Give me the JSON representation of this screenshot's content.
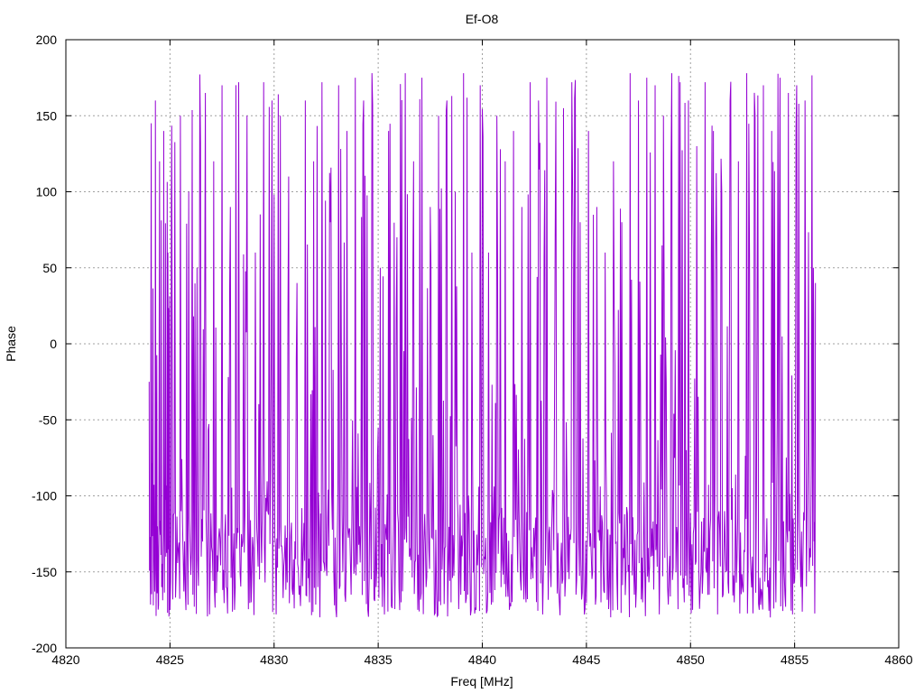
{
  "chart_data": {
    "type": "line",
    "title": "Ef-O8",
    "xlabel": "Freq [MHz]",
    "ylabel": "Phase",
    "xlim": [
      4820,
      4860
    ],
    "ylim": [
      -200,
      200
    ],
    "xticks": [
      4820,
      4825,
      4830,
      4835,
      4840,
      4845,
      4850,
      4855,
      4860
    ],
    "yticks": [
      -200,
      -150,
      -100,
      -50,
      0,
      50,
      100,
      150,
      200
    ],
    "grid": true,
    "line_color": "#9400d3",
    "series": [
      {
        "x_start": 4824.0,
        "x_end": 4856.0,
        "points": [
          [
            4824.0,
            -25
          ],
          [
            4824.1,
            145
          ],
          [
            4824.2,
            -172
          ],
          [
            4824.3,
            160
          ],
          [
            4824.4,
            -120
          ],
          [
            4824.5,
            120
          ],
          [
            4824.6,
            -160
          ],
          [
            4824.7,
            140
          ],
          [
            4824.8,
            -140
          ],
          [
            4824.9,
            60
          ],
          [
            4825.0,
            -175
          ],
          [
            4825.1,
            30
          ],
          [
            4825.3,
            -150
          ],
          [
            4825.5,
            150
          ],
          [
            4825.7,
            -130
          ],
          [
            4825.9,
            100
          ],
          [
            4826.1,
            -165
          ],
          [
            4826.3,
            50
          ],
          [
            4826.5,
            -140
          ],
          [
            4826.7,
            165
          ],
          [
            4826.9,
            -178
          ],
          [
            4827.1,
            120
          ],
          [
            4827.3,
            -150
          ],
          [
            4827.5,
            170
          ],
          [
            4827.7,
            -160
          ],
          [
            4827.9,
            90
          ],
          [
            4828.1,
            -175
          ],
          [
            4828.3,
            172
          ],
          [
            4828.5,
            -130
          ],
          [
            4828.7,
            150
          ],
          [
            4828.9,
            -170
          ],
          [
            4829.1,
            60
          ],
          [
            4829.3,
            -155
          ],
          [
            4829.5,
            172
          ],
          [
            4829.7,
            -110
          ],
          [
            4829.9,
            160
          ],
          [
            4830.1,
            -178
          ],
          [
            4830.3,
            150
          ],
          [
            4830.5,
            -140
          ],
          [
            4830.7,
            110
          ],
          [
            4830.9,
            -165
          ],
          [
            4831.1,
            40
          ],
          [
            4831.3,
            -150
          ],
          [
            4831.5,
            160
          ],
          [
            4831.7,
            -170
          ],
          [
            4831.9,
            120
          ],
          [
            4832.1,
            -160
          ],
          [
            4832.3,
            172
          ],
          [
            4832.5,
            -145
          ],
          [
            4832.7,
            80
          ],
          [
            4832.9,
            -172
          ],
          [
            4833.1,
            170
          ],
          [
            4833.3,
            -150
          ],
          [
            4833.5,
            140
          ],
          [
            4833.7,
            -165
          ],
          [
            4833.9,
            175
          ],
          [
            4834.1,
            -120
          ],
          [
            4834.3,
            160
          ],
          [
            4834.5,
            -175
          ],
          [
            4834.7,
            178
          ],
          [
            4834.9,
            -160
          ],
          [
            4835.1,
            50
          ],
          [
            4835.3,
            -178
          ],
          [
            4835.5,
            140
          ],
          [
            4835.7,
            -150
          ],
          [
            4835.9,
            70
          ],
          [
            4836.1,
            -170
          ],
          [
            4836.3,
            178
          ],
          [
            4836.5,
            -140
          ],
          [
            4836.7,
            120
          ],
          [
            4836.9,
            -175
          ],
          [
            4837.1,
            175
          ],
          [
            4837.3,
            -160
          ],
          [
            4837.5,
            90
          ],
          [
            4837.7,
            -178
          ],
          [
            4837.9,
            150
          ],
          [
            4838.1,
            -130
          ],
          [
            4838.3,
            160
          ],
          [
            4838.5,
            -170
          ],
          [
            4838.7,
            100
          ],
          [
            4838.9,
            -150
          ],
          [
            4839.1,
            178
          ],
          [
            4839.3,
            -165
          ],
          [
            4839.5,
            60
          ],
          [
            4839.7,
            -175
          ],
          [
            4839.9,
            170
          ],
          [
            4840.1,
            -140
          ],
          [
            4840.3,
            60
          ],
          [
            4840.5,
            -170
          ],
          [
            4840.7,
            150
          ],
          [
            4840.9,
            -160
          ],
          [
            4841.1,
            120
          ],
          [
            4841.3,
            -175
          ],
          [
            4841.5,
            140
          ],
          [
            4841.7,
            -150
          ],
          [
            4841.9,
            90
          ],
          [
            4842.1,
            -170
          ],
          [
            4842.3,
            172
          ],
          [
            4842.5,
            -140
          ],
          [
            4842.7,
            160
          ],
          [
            4842.9,
            -178
          ],
          [
            4843.1,
            175
          ],
          [
            4843.3,
            -160
          ],
          [
            4843.5,
            70
          ],
          [
            4843.7,
            -170
          ],
          [
            4843.9,
            155
          ],
          [
            4844.1,
            -150
          ],
          [
            4844.3,
            172
          ],
          [
            4844.5,
            -165
          ],
          [
            4844.7,
            80
          ],
          [
            4844.9,
            -178
          ],
          [
            4845.1,
            140
          ],
          [
            4845.3,
            -150
          ],
          [
            4845.5,
            90
          ],
          [
            4845.7,
            -170
          ],
          [
            4845.9,
            60
          ],
          [
            4846.1,
            -160
          ],
          [
            4846.3,
            120
          ],
          [
            4846.5,
            -175
          ],
          [
            4846.7,
            80
          ],
          [
            4846.9,
            -150
          ],
          [
            4847.1,
            178
          ],
          [
            4847.3,
            -165
          ],
          [
            4847.5,
            160
          ],
          [
            4847.7,
            -170
          ],
          [
            4847.9,
            175
          ],
          [
            4848.1,
            -140
          ],
          [
            4848.3,
            170
          ],
          [
            4848.5,
            -178
          ],
          [
            4848.7,
            150
          ],
          [
            4848.9,
            -160
          ],
          [
            4849.1,
            178
          ],
          [
            4849.3,
            -150
          ],
          [
            4849.5,
            172
          ],
          [
            4849.7,
            -170
          ],
          [
            4849.9,
            160
          ],
          [
            4850.1,
            -175
          ],
          [
            4850.3,
            130
          ],
          [
            4850.5,
            -150
          ],
          [
            4850.7,
            172
          ],
          [
            4850.9,
            -165
          ],
          [
            4851.1,
            140
          ],
          [
            4851.3,
            -178
          ],
          [
            4851.5,
            100
          ],
          [
            4851.7,
            -150
          ],
          [
            4851.9,
            160
          ],
          [
            4852.1,
            -170
          ],
          [
            4852.3,
            120
          ],
          [
            4852.5,
            -160
          ],
          [
            4852.7,
            178
          ],
          [
            4852.9,
            -150
          ],
          [
            4853.1,
            150
          ],
          [
            4853.3,
            -175
          ],
          [
            4853.5,
            170
          ],
          [
            4853.7,
            -160
          ],
          [
            4853.9,
            140
          ],
          [
            4854.1,
            -170
          ],
          [
            4854.3,
            175
          ],
          [
            4854.5,
            -150
          ],
          [
            4854.7,
            165
          ],
          [
            4854.9,
            -178
          ],
          [
            4855.1,
            170
          ],
          [
            4855.3,
            -160
          ],
          [
            4855.5,
            160
          ],
          [
            4855.7,
            -150
          ],
          [
            4855.9,
            50
          ],
          [
            4856.0,
            40
          ]
        ]
      }
    ]
  }
}
